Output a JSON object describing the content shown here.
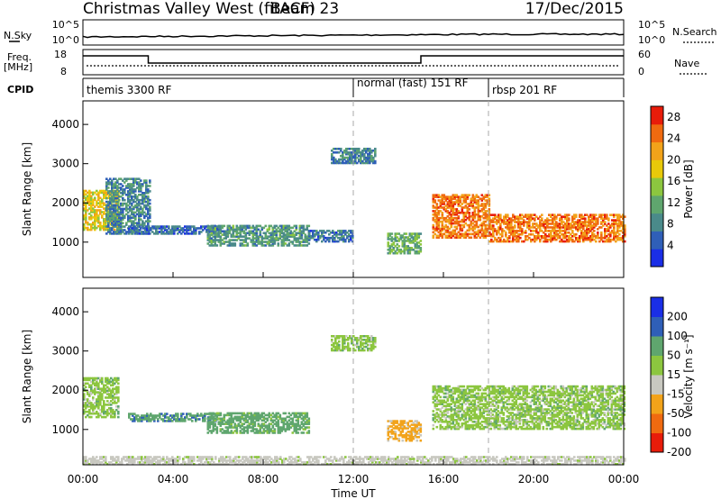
{
  "header": {
    "station": "Christmas Valley West (fitACF)",
    "beam": "Beam 23",
    "date": "17/Dec/2015"
  },
  "top_panels": {
    "nsky_label": "N.Sky",
    "nsearch_label": "N.Search",
    "noise_ticks": [
      "10^5",
      "10^0"
    ],
    "freq_label": "Freq.",
    "freq_unit": "[MHz]",
    "freq_ticks": [
      "18",
      "8"
    ],
    "nave_label": "Nave",
    "nave_ticks": [
      "60",
      "0"
    ],
    "cpid_label": "CPID",
    "cpid_segments": [
      {
        "label": "themis 3300 RF",
        "start_hour": 0.0
      },
      {
        "label": "normal (fast) 151 RF",
        "start_hour": 12.0
      },
      {
        "label": "rbsp 201 RF",
        "start_hour": 18.0
      }
    ]
  },
  "chart_data": [
    {
      "type": "heatmap",
      "name": "Power",
      "ylabel": "Slant Range [km]",
      "xlim_hours": [
        0,
        24
      ],
      "ylim_km": [
        100,
        4600
      ],
      "yticks": [
        1000,
        2000,
        3000,
        4000
      ],
      "colorbar": {
        "label": "Power [dB]",
        "ticks": [
          4,
          8,
          12,
          16,
          20,
          24,
          28
        ],
        "range": [
          0,
          30
        ]
      },
      "color_scale": [
        "#1a2ee6",
        "#2f5fb8",
        "#4a8a8a",
        "#5fa66e",
        "#8cc63f",
        "#e8c90a",
        "#f2a31a",
        "#f06a10",
        "#e81c0a"
      ],
      "echo_regions": [
        {
          "t0": 0.0,
          "t1": 1.6,
          "r0": 1300,
          "r1": 2300,
          "level": 18
        },
        {
          "t0": 1.0,
          "t1": 3.0,
          "r0": 1200,
          "r1": 2600,
          "level": 8
        },
        {
          "t0": 2.0,
          "t1": 6.0,
          "r0": 1200,
          "r1": 1400,
          "level": 6
        },
        {
          "t0": 5.5,
          "t1": 10.0,
          "r0": 900,
          "r1": 1400,
          "level": 10
        },
        {
          "t0": 10.0,
          "t1": 12.0,
          "r0": 1000,
          "r1": 1300,
          "level": 7
        },
        {
          "t0": 11.0,
          "t1": 13.0,
          "r0": 3000,
          "r1": 3400,
          "level": 8
        },
        {
          "t0": 13.5,
          "t1": 15.0,
          "r0": 700,
          "r1": 1200,
          "level": 12
        },
        {
          "t0": 15.5,
          "t1": 18.0,
          "r0": 1100,
          "r1": 2200,
          "level": 24
        },
        {
          "t0": 18.0,
          "t1": 24.0,
          "r0": 1000,
          "r1": 1700,
          "level": 24
        }
      ]
    },
    {
      "type": "heatmap",
      "name": "Velocity",
      "ylabel": "Slant Range [km]",
      "xlabel": "Time UT",
      "xlim_hours": [
        0,
        24
      ],
      "ylim_km": [
        100,
        4600
      ],
      "yticks": [
        1000,
        2000,
        3000,
        4000
      ],
      "xticks": [
        "00:00",
        "04:00",
        "08:00",
        "12:00",
        "16:00",
        "20:00",
        "00:00"
      ],
      "colorbar": {
        "label": "Velocity [m s⁻¹]",
        "ticks": [
          200,
          100,
          50,
          15,
          -15,
          -50,
          -100,
          -200
        ],
        "range": [
          -250,
          250
        ]
      },
      "color_scale": [
        "#e81c0a",
        "#f06a10",
        "#f2a31a",
        "#c8c8c0",
        "#8cc63f",
        "#5fa66e",
        "#2f5fb8",
        "#1a2ee6"
      ],
      "echo_regions": [
        {
          "t0": 0.0,
          "t1": 1.6,
          "r0": 1300,
          "r1": 2300,
          "vel": 0
        },
        {
          "t0": 2.0,
          "t1": 6.0,
          "r0": 1200,
          "r1": 1400,
          "vel": 40
        },
        {
          "t0": 5.5,
          "t1": 10.0,
          "r0": 900,
          "r1": 1400,
          "vel": 30
        },
        {
          "t0": 11.0,
          "t1": 13.0,
          "r0": 3000,
          "r1": 3400,
          "vel": 0
        },
        {
          "t0": 13.5,
          "t1": 15.0,
          "r0": 700,
          "r1": 1200,
          "vel": -60
        },
        {
          "t0": 15.5,
          "t1": 24.0,
          "r0": 1000,
          "r1": 2100,
          "vel": 0
        },
        {
          "t0": 0.0,
          "t1": 24.0,
          "r0": 100,
          "r1": 300,
          "vel": -30
        }
      ]
    }
  ]
}
